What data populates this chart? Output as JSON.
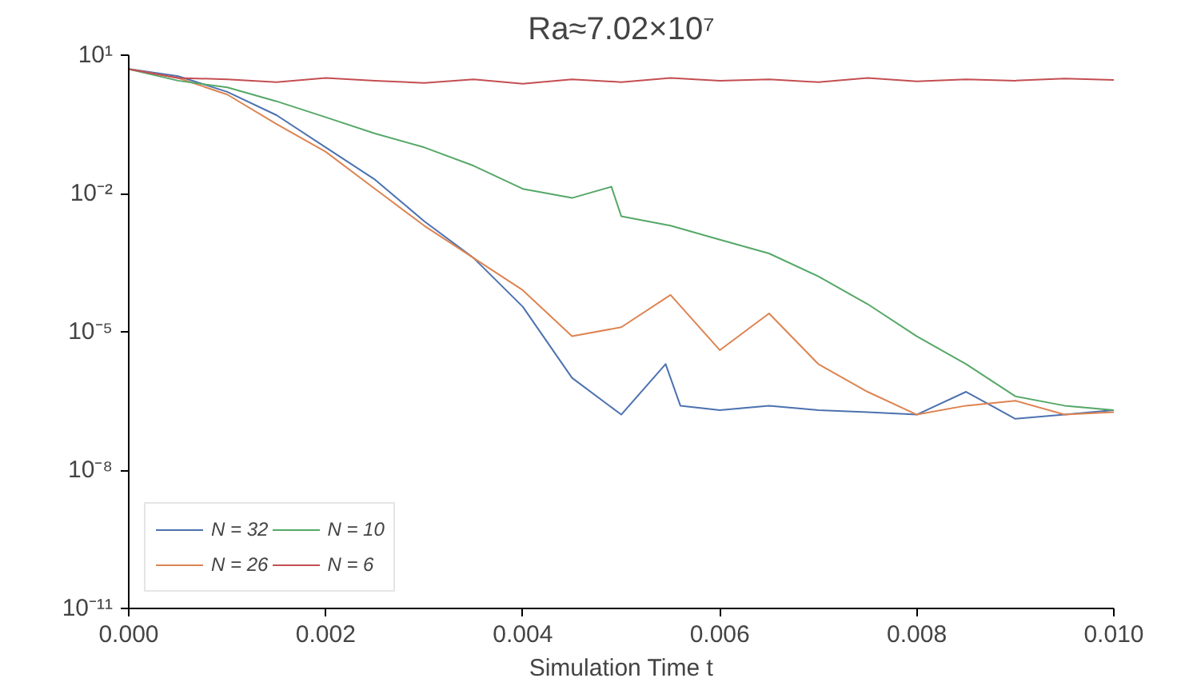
{
  "chart_data": {
    "type": "line",
    "title": "Ra≈7.02×10⁷",
    "xlabel": "Simulation Time t",
    "log": "y",
    "grid": false,
    "legend": "bottom left",
    "marker": "none",
    "line_style": "solid",
    "xlim": [
      0,
      0.01
    ],
    "ylim": [
      1e-11,
      10
    ],
    "xticks": [
      {
        "value": 0,
        "label": "0.000"
      },
      {
        "value": 0.002,
        "label": "0.002"
      },
      {
        "value": 0.004,
        "label": "0.004"
      },
      {
        "value": 0.006,
        "label": "0.006"
      },
      {
        "value": 0.008,
        "label": "0.008"
      },
      {
        "value": 0.01,
        "label": "0.010"
      }
    ],
    "yticks": [
      {
        "value": 1e-11,
        "label": "10⁻¹¹"
      },
      {
        "value": 1e-08,
        "label": "10⁻⁸"
      },
      {
        "value": 1e-05,
        "label": "10⁻⁵"
      },
      {
        "value": 0.01,
        "label": "10⁻²"
      },
      {
        "value": 10,
        "label": "10¹"
      }
    ],
    "series": [
      {
        "name": "N = 32",
        "color": "#4c72b0",
        "x": [
          0,
          0.0005,
          0.001,
          0.0015,
          0.002,
          0.0025,
          0.003,
          0.0035,
          0.004,
          0.0045,
          0.005,
          0.00545,
          0.0056,
          0.006,
          0.0065,
          0.007,
          0.0075,
          0.008,
          0.0085,
          0.009,
          0.0095,
          0.01
        ],
        "values": [
          5,
          3.5,
          1.6,
          0.5,
          0.1,
          0.02,
          0.0025,
          0.0004,
          3.5e-05,
          1e-06,
          1.6e-07,
          2e-06,
          2.5e-07,
          2e-07,
          2.5e-07,
          2e-07,
          1.8e-07,
          1.6e-07,
          5e-07,
          1.3e-07,
          1.6e-07,
          2e-07
        ]
      },
      {
        "name": "N = 26",
        "color": "#dd8452",
        "x": [
          0,
          0.0005,
          0.001,
          0.0015,
          0.002,
          0.0025,
          0.003,
          0.0035,
          0.004,
          0.0045,
          0.005,
          0.0055,
          0.006,
          0.0065,
          0.007,
          0.0075,
          0.008,
          0.0085,
          0.009,
          0.0095,
          0.01
        ],
        "values": [
          5,
          3.2,
          1.4,
          0.32,
          0.08,
          0.0126,
          0.002,
          0.0004,
          8e-05,
          8e-06,
          1.26e-05,
          6.3e-05,
          4e-06,
          2.5e-05,
          2e-06,
          5e-07,
          1.6e-07,
          2.5e-07,
          3.2e-07,
          1.6e-07,
          1.8e-07
        ]
      },
      {
        "name": "N = 10",
        "color": "#55a868",
        "x": [
          0,
          0.0005,
          0.001,
          0.0015,
          0.002,
          0.0025,
          0.003,
          0.0035,
          0.004,
          0.0045,
          0.0049,
          0.005,
          0.0055,
          0.006,
          0.0065,
          0.007,
          0.0075,
          0.008,
          0.0085,
          0.009,
          0.0095,
          0.01
        ],
        "values": [
          5,
          2.8,
          2,
          1,
          0.45,
          0.2,
          0.1,
          0.04,
          0.0126,
          0.008,
          0.014,
          0.0032,
          0.002,
          0.001,
          0.0005,
          0.00016,
          4e-05,
          8e-06,
          2e-06,
          4e-07,
          2.5e-07,
          2e-07
        ]
      },
      {
        "name": "N = 6",
        "color": "#c44e52",
        "x": [
          0,
          0.0005,
          0.001,
          0.0015,
          0.002,
          0.0025,
          0.003,
          0.0035,
          0.004,
          0.0045,
          0.005,
          0.0055,
          0.006,
          0.0065,
          0.007,
          0.0075,
          0.008,
          0.0085,
          0.009,
          0.0095,
          0.01
        ],
        "values": [
          5,
          3.2,
          3,
          2.6,
          3.2,
          2.8,
          2.5,
          3,
          2.4,
          3,
          2.6,
          3.2,
          2.8,
          3,
          2.6,
          3.2,
          2.7,
          3,
          2.8,
          3.1,
          2.9
        ]
      }
    ]
  }
}
